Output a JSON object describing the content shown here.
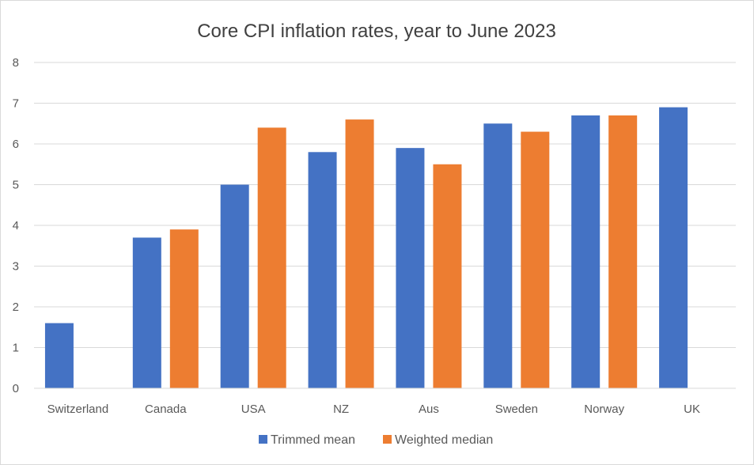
{
  "chart_data": {
    "type": "bar",
    "title": "Core CPI inflation rates, year to June 2023",
    "xlabel": "",
    "ylabel": "",
    "ylim": [
      0,
      8
    ],
    "yticks": [
      "0",
      "1",
      "2",
      "3",
      "4",
      "5",
      "6",
      "7",
      "8"
    ],
    "grid": true,
    "legend_position": "bottom",
    "categories": [
      "Switzerland",
      "Canada",
      "USA",
      "NZ",
      "Aus",
      "Sweden",
      "Norway",
      "UK"
    ],
    "series": [
      {
        "name": "Trimmed mean",
        "color": "#4472c4",
        "values": [
          1.6,
          3.7,
          5.0,
          5.8,
          5.9,
          6.5,
          6.7,
          6.9
        ]
      },
      {
        "name": "Weighted median",
        "color": "#ed7d31",
        "values": [
          null,
          3.9,
          6.4,
          6.6,
          5.5,
          6.3,
          6.7,
          null
        ]
      }
    ]
  }
}
